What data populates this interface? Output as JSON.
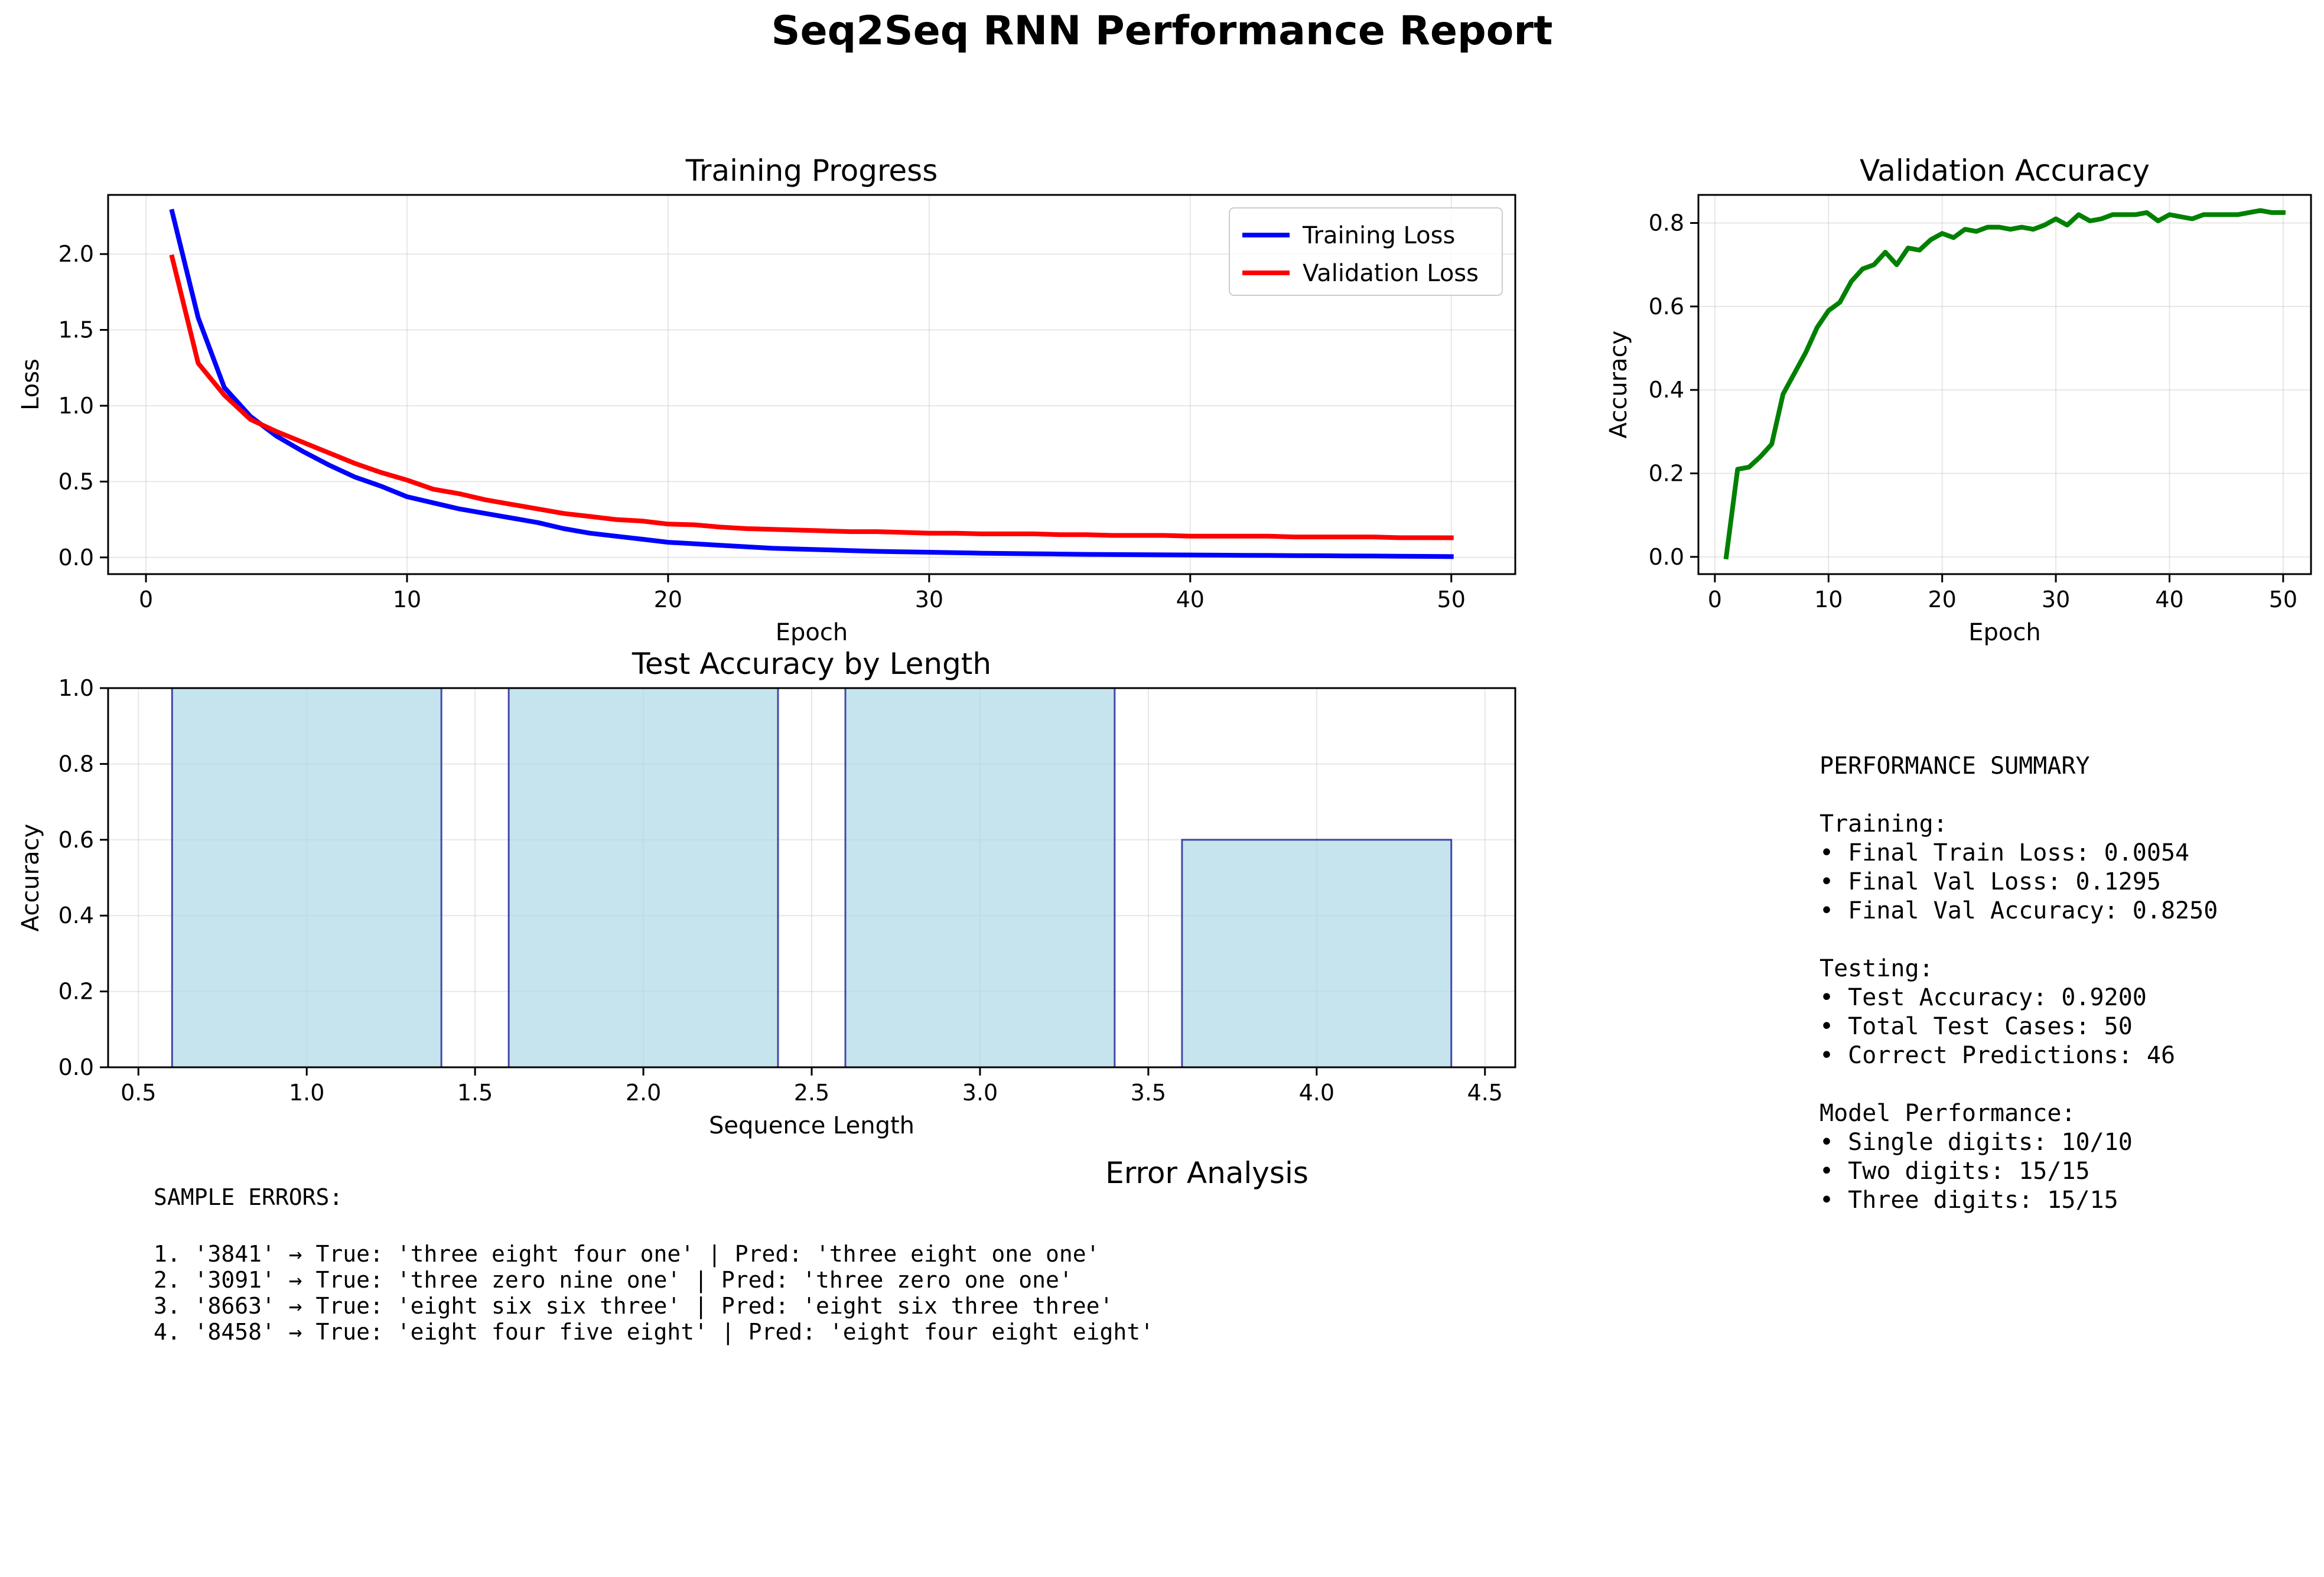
{
  "figure": {
    "title": "Seq2Seq RNN Performance Report"
  },
  "colors": {
    "training_loss": "#0000ff",
    "validation_loss": "#ff0000",
    "validation_accuracy": "#008000",
    "bar_fill": "#add8e6",
    "bar_edge": "#00008b"
  },
  "chart_data": [
    {
      "id": "training_progress",
      "type": "line",
      "title": "Training Progress",
      "xlabel": "Epoch",
      "ylabel": "Loss",
      "xlim": [
        -1.45,
        52.45
      ],
      "ylim": [
        -0.11,
        2.39
      ],
      "xticks": [
        0,
        10,
        20,
        30,
        40,
        50
      ],
      "yticks": [
        0.0,
        0.5,
        1.0,
        1.5,
        2.0
      ],
      "xtick_labels": [
        "0",
        "10",
        "20",
        "30",
        "40",
        "50"
      ],
      "ytick_labels": [
        "0.0",
        "0.5",
        "1.0",
        "1.5",
        "2.0"
      ],
      "grid": true,
      "legend": "upper right",
      "x": [
        1,
        2,
        3,
        4,
        5,
        6,
        7,
        8,
        9,
        10,
        11,
        12,
        13,
        14,
        15,
        16,
        17,
        18,
        19,
        20,
        21,
        22,
        23,
        24,
        25,
        26,
        27,
        28,
        29,
        30,
        31,
        32,
        33,
        34,
        35,
        36,
        37,
        38,
        39,
        40,
        41,
        42,
        43,
        44,
        45,
        46,
        47,
        48,
        49,
        50
      ],
      "series": [
        {
          "name": "Training Loss",
          "color": "#0000ff",
          "values": [
            2.28,
            1.58,
            1.12,
            0.93,
            0.8,
            0.7,
            0.61,
            0.53,
            0.47,
            0.4,
            0.36,
            0.32,
            0.29,
            0.26,
            0.23,
            0.19,
            0.16,
            0.14,
            0.12,
            0.1,
            0.09,
            0.08,
            0.07,
            0.06,
            0.055,
            0.05,
            0.045,
            0.04,
            0.037,
            0.034,
            0.031,
            0.028,
            0.026,
            0.024,
            0.022,
            0.02,
            0.019,
            0.018,
            0.017,
            0.016,
            0.015,
            0.014,
            0.013,
            0.012,
            0.011,
            0.01,
            0.009,
            0.008,
            0.007,
            0.0054
          ]
        },
        {
          "name": "Validation Loss",
          "color": "#ff0000",
          "values": [
            1.98,
            1.28,
            1.07,
            0.91,
            0.83,
            0.76,
            0.69,
            0.62,
            0.56,
            0.51,
            0.45,
            0.42,
            0.38,
            0.35,
            0.32,
            0.29,
            0.27,
            0.25,
            0.24,
            0.22,
            0.215,
            0.2,
            0.19,
            0.185,
            0.18,
            0.175,
            0.17,
            0.17,
            0.165,
            0.16,
            0.16,
            0.155,
            0.155,
            0.155,
            0.15,
            0.15,
            0.145,
            0.145,
            0.145,
            0.14,
            0.14,
            0.14,
            0.14,
            0.135,
            0.135,
            0.135,
            0.135,
            0.13,
            0.13,
            0.1295
          ]
        }
      ]
    },
    {
      "id": "validation_accuracy",
      "type": "line",
      "title": "Validation Accuracy",
      "xlabel": "Epoch",
      "ylabel": "Accuracy",
      "xlim": [
        -1.45,
        52.45
      ],
      "ylim": [
        -0.0413,
        0.8673
      ],
      "xticks": [
        0,
        10,
        20,
        30,
        40,
        50
      ],
      "yticks": [
        0.0,
        0.2,
        0.4,
        0.6,
        0.8
      ],
      "xtick_labels": [
        "0",
        "10",
        "20",
        "30",
        "40",
        "50"
      ],
      "ytick_labels": [
        "0.0",
        "0.2",
        "0.4",
        "0.6",
        "0.8"
      ],
      "grid": true,
      "x": [
        1,
        2,
        3,
        4,
        5,
        6,
        7,
        8,
        9,
        10,
        11,
        12,
        13,
        14,
        15,
        16,
        17,
        18,
        19,
        20,
        21,
        22,
        23,
        24,
        25,
        26,
        27,
        28,
        29,
        30,
        31,
        32,
        33,
        34,
        35,
        36,
        37,
        38,
        39,
        40,
        41,
        42,
        43,
        44,
        45,
        46,
        47,
        48,
        49,
        50
      ],
      "series": [
        {
          "color": "#008000",
          "values": [
            0.0,
            0.21,
            0.215,
            0.24,
            0.27,
            0.39,
            0.44,
            0.49,
            0.55,
            0.59,
            0.61,
            0.66,
            0.69,
            0.7,
            0.73,
            0.7,
            0.74,
            0.735,
            0.76,
            0.775,
            0.765,
            0.785,
            0.78,
            0.79,
            0.79,
            0.785,
            0.79,
            0.785,
            0.795,
            0.81,
            0.795,
            0.82,
            0.805,
            0.81,
            0.82,
            0.82,
            0.82,
            0.825,
            0.805,
            0.82,
            0.815,
            0.81,
            0.82,
            0.82,
            0.82,
            0.82,
            0.825,
            0.83,
            0.825,
            0.825
          ]
        }
      ]
    },
    {
      "id": "test_accuracy_by_length",
      "type": "bar",
      "title": "Test Accuracy by Length",
      "xlabel": "Sequence Length",
      "ylabel": "Accuracy",
      "categories": [
        1,
        2,
        3,
        4
      ],
      "values": [
        1.0,
        1.0,
        1.0,
        0.6
      ],
      "bar_width": 0.8,
      "xlim": [
        0.41,
        4.59
      ],
      "ylim": [
        0.0,
        1.0
      ],
      "xticks": [
        0.5,
        1.0,
        1.5,
        2.0,
        2.5,
        3.0,
        3.5,
        4.0,
        4.5
      ],
      "yticks": [
        0.0,
        0.2,
        0.4,
        0.6,
        0.8,
        1.0
      ],
      "xtick_labels": [
        "0.5",
        "1.0",
        "1.5",
        "2.0",
        "2.5",
        "3.0",
        "3.5",
        "4.0",
        "4.5"
      ],
      "ytick_labels": [
        "0.0",
        "0.2",
        "0.4",
        "0.6",
        "0.8",
        "1.0"
      ],
      "grid": true
    }
  ],
  "error_analysis": {
    "title": "Error Analysis",
    "lines": [
      "SAMPLE ERRORS:",
      "",
      "1. '3841' → True: 'three eight four one' | Pred: 'three eight one one'",
      "2. '3091' → True: 'three zero nine one' | Pred: 'three zero one one'",
      "3. '8663' → True: 'eight six six three' | Pred: 'eight six three three'",
      "4. '8458' → True: 'eight four five eight' | Pred: 'eight four eight eight'"
    ]
  },
  "performance_summary": {
    "lines": [
      "PERFORMANCE SUMMARY",
      "",
      "Training:",
      "• Final Train Loss: 0.0054",
      "• Final Val Loss: 0.1295",
      "• Final Val Accuracy: 0.8250",
      "",
      "Testing:",
      "• Test Accuracy: 0.9200",
      "• Total Test Cases: 50",
      "• Correct Predictions: 46",
      "",
      "Model Performance:",
      "• Single digits: 10/10",
      "• Two digits: 15/15",
      "• Three digits: 15/15"
    ]
  }
}
